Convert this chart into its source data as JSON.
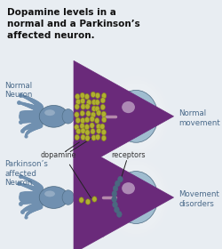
{
  "title": "Dopamine levels in a\nnormal and a Parkinson’s\naffected neuron.",
  "bg_color": "#e8edf2",
  "neuron_body_color": "#7090b0",
  "neuron_light": "#a0bdd0",
  "neuron_dark": "#4a6880",
  "dopamine_color": "#b0b030",
  "dopamine_edge": "#888818",
  "arrow_color": "#6a2a7a",
  "label_color": "#4a6a8a",
  "text_dark": "#222222",
  "title_color": "#111111",
  "title_text": "Dopamine levels in a\nnormal and a Parkinson’s\naffected neuron.",
  "normal_label": "Normal\nNeuron",
  "parkinsons_label": "Parkinson’s\naffected\nNeuron",
  "dopamine_label": "dopamine",
  "receptors_label": "receptors",
  "normal_movement": "Normal\nmovement",
  "movement_disorders": "Movement\ndisorders",
  "synapse_line_color": "#c8a0b8",
  "separator_color": "#888888"
}
